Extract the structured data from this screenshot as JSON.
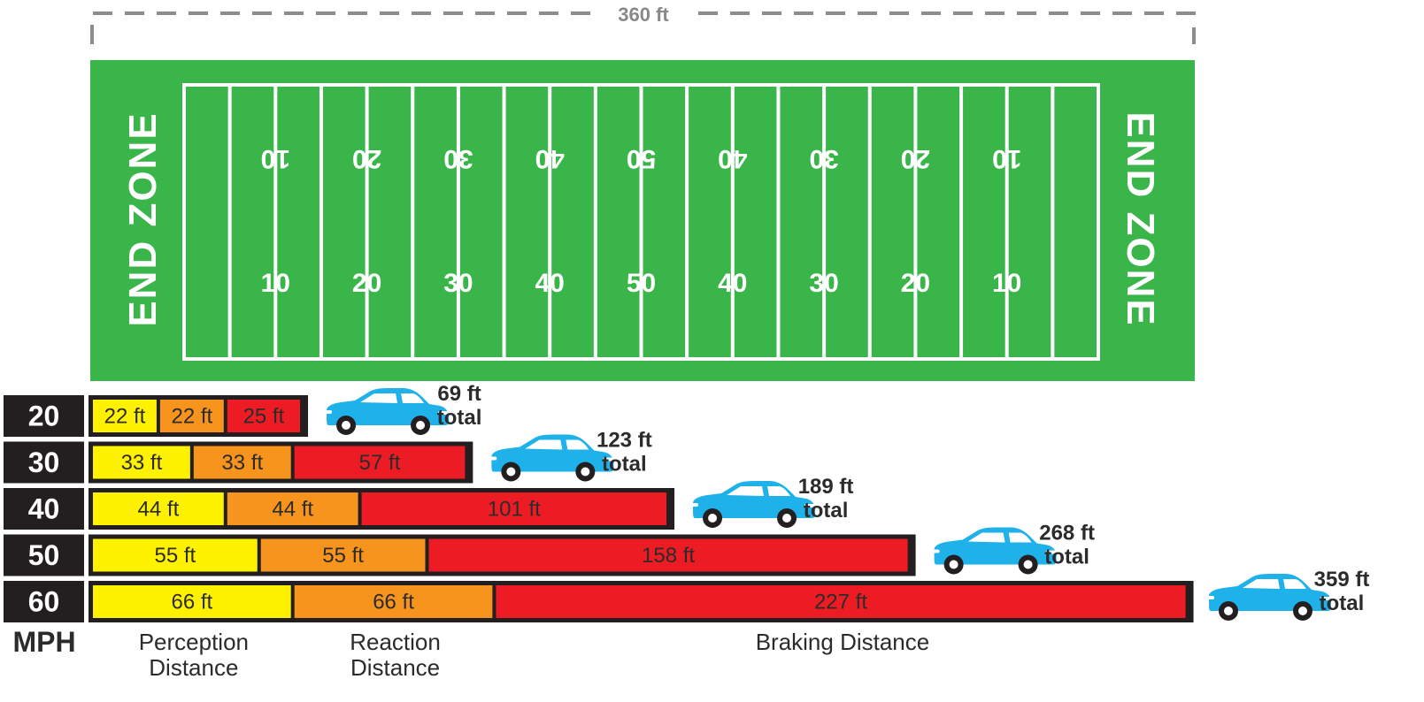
{
  "chart_data": {
    "type": "bar",
    "orientation": "horizontal",
    "stacked": true,
    "title": "",
    "xlabel": "",
    "ylabel": "MPH",
    "span_label": "360 ft",
    "xlim": [
      0,
      360
    ],
    "categories": [
      "20",
      "30",
      "40",
      "50",
      "60"
    ],
    "series": [
      {
        "name": "Perception Distance",
        "legend_lines": [
          "Perception",
          "Distance"
        ],
        "color": "#fff200",
        "values": [
          22,
          33,
          44,
          55,
          66
        ],
        "labels": [
          "22 ft",
          "33 ft",
          "44 ft",
          "55 ft",
          "66 ft"
        ]
      },
      {
        "name": "Reaction Distance",
        "legend_lines": [
          "Reaction",
          "Distance"
        ],
        "color": "#f7941d",
        "values": [
          22,
          33,
          44,
          55,
          66
        ],
        "labels": [
          "22 ft",
          "33 ft",
          "44 ft",
          "55 ft",
          "66 ft"
        ]
      },
      {
        "name": "Braking Distance",
        "legend_lines": [
          "Braking Distance"
        ],
        "color": "#ed1c24",
        "values": [
          25,
          57,
          101,
          158,
          227
        ],
        "labels": [
          "25 ft",
          "57 ft",
          "101 ft",
          "158 ft",
          "227 ft"
        ]
      }
    ],
    "totals": [
      {
        "value": "69 ft",
        "suffix": "total"
      },
      {
        "value": "123 ft",
        "suffix": "total"
      },
      {
        "value": "189 ft",
        "suffix": "total"
      },
      {
        "value": "268 ft",
        "suffix": "total"
      },
      {
        "value": "359 ft",
        "suffix": "total"
      }
    ],
    "field": {
      "end_zone_label": "END ZONE",
      "yard_markers": [
        "10",
        "20",
        "30",
        "40",
        "50",
        "40",
        "30",
        "20",
        "10"
      ]
    }
  },
  "colors": {
    "field_green": "#3ab54a",
    "field_line": "#ffffff",
    "car_blue": "#1fb1ea",
    "frame_dark": "#231f20",
    "dash_gray": "#8c8c8c"
  },
  "icons": {
    "car": "car-icon"
  }
}
